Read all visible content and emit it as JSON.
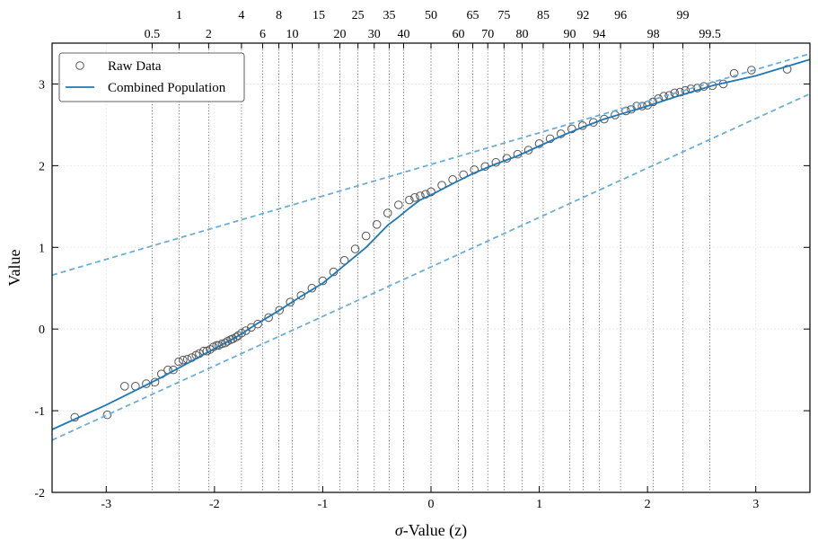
{
  "chart_data": {
    "type": "scatter",
    "title": "",
    "xlabel": {
      "symbol": "σ",
      "text": "-Value (z)"
    },
    "ylabel": "Value",
    "xlim": [
      -3.5,
      3.5
    ],
    "ylim": [
      -2,
      3.5
    ],
    "x_ticks": [
      -3,
      -2,
      -1,
      0,
      1,
      2,
      3
    ],
    "x_tick_labels": [
      "-3",
      "-2",
      "-1",
      "0",
      "1",
      "2",
      "3"
    ],
    "y_ticks": [
      -2,
      -1,
      0,
      1,
      2,
      3
    ],
    "y_tick_labels": [
      "-2",
      "-1",
      "0",
      "1",
      "2",
      "3"
    ],
    "grid": true,
    "legend_position": "top-left",
    "top_axis": {
      "label": "",
      "percentile_ticks_upper": [
        1,
        4,
        8,
        15,
        25,
        35,
        50,
        65,
        75,
        85,
        92,
        96,
        99
      ],
      "percentile_ticks_lower": [
        0.5,
        2,
        6,
        10,
        20,
        30,
        40,
        60,
        70,
        80,
        90,
        94,
        98,
        99.5
      ]
    },
    "series": [
      {
        "name": "Raw Data",
        "kind": "scatter",
        "marker": "open-circle",
        "color": "#555555",
        "x": [
          -3.29,
          -2.99,
          -2.83,
          -2.73,
          -2.63,
          -2.55,
          -2.49,
          -2.43,
          -2.38,
          -2.33,
          -2.29,
          -2.25,
          -2.21,
          -2.17,
          -2.14,
          -2.1,
          -2.07,
          -2.04,
          -2.01,
          -1.98,
          -1.96,
          -1.93,
          -1.9,
          -1.88,
          -1.85,
          -1.83,
          -1.8,
          -1.78,
          -1.75,
          -1.71,
          -1.66,
          -1.6,
          -1.5,
          -1.4,
          -1.3,
          -1.2,
          -1.1,
          -1.0,
          -0.9,
          -0.8,
          -0.7,
          -0.6,
          -0.5,
          -0.4,
          -0.3,
          -0.2,
          -0.15,
          -0.1,
          -0.05,
          0.0,
          0.1,
          0.2,
          0.3,
          0.4,
          0.5,
          0.6,
          0.7,
          0.8,
          0.9,
          1.0,
          1.1,
          1.2,
          1.3,
          1.4,
          1.5,
          1.6,
          1.7,
          1.8,
          1.85,
          1.9,
          1.95,
          2.0,
          2.05,
          2.1,
          2.15,
          2.2,
          2.25,
          2.3,
          2.35,
          2.4,
          2.46,
          2.52,
          2.6,
          2.7,
          2.8,
          2.96,
          3.29
        ],
        "y": [
          -1.08,
          -1.05,
          -0.7,
          -0.7,
          -0.67,
          -0.65,
          -0.55,
          -0.5,
          -0.5,
          -0.4,
          -0.38,
          -0.37,
          -0.35,
          -0.32,
          -0.3,
          -0.27,
          -0.27,
          -0.25,
          -0.22,
          -0.2,
          -0.2,
          -0.18,
          -0.17,
          -0.15,
          -0.13,
          -0.12,
          -0.1,
          -0.08,
          -0.05,
          -0.02,
          0.02,
          0.06,
          0.14,
          0.23,
          0.33,
          0.41,
          0.5,
          0.59,
          0.7,
          0.84,
          0.98,
          1.14,
          1.28,
          1.42,
          1.52,
          1.58,
          1.61,
          1.63,
          1.65,
          1.68,
          1.76,
          1.83,
          1.89,
          1.95,
          1.99,
          2.04,
          2.09,
          2.14,
          2.19,
          2.27,
          2.33,
          2.39,
          2.45,
          2.49,
          2.53,
          2.57,
          2.62,
          2.67,
          2.69,
          2.73,
          2.73,
          2.74,
          2.78,
          2.82,
          2.85,
          2.86,
          2.89,
          2.9,
          2.92,
          2.94,
          2.95,
          2.97,
          2.98,
          3.0,
          3.13,
          3.17,
          3.18
        ]
      },
      {
        "name": "Combined Population",
        "kind": "line",
        "color": "#1f77b4",
        "x": [
          -3.5,
          -3.0,
          -2.5,
          -2.0,
          -1.8,
          -1.6,
          -1.4,
          -1.2,
          -1.0,
          -0.8,
          -0.6,
          -0.4,
          -0.3,
          -0.2,
          -0.1,
          0.0,
          0.2,
          0.4,
          0.6,
          0.8,
          1.0,
          1.2,
          1.4,
          1.6,
          1.8,
          2.0,
          2.3,
          2.6,
          3.0,
          3.5
        ],
        "y": [
          -1.23,
          -0.93,
          -0.6,
          -0.24,
          -0.1,
          0.07,
          0.23,
          0.4,
          0.56,
          0.78,
          1.0,
          1.27,
          1.37,
          1.48,
          1.58,
          1.64,
          1.78,
          1.91,
          2.02,
          2.12,
          2.24,
          2.36,
          2.47,
          2.57,
          2.65,
          2.73,
          2.86,
          2.98,
          3.1,
          3.3
        ]
      },
      {
        "name": "",
        "kind": "dashed-line",
        "color": "#6baed6",
        "x": [
          -3.5,
          3.5
        ],
        "y": [
          0.66,
          3.37
        ]
      },
      {
        "name": "",
        "kind": "dashed-line",
        "color": "#6baed6",
        "x": [
          -3.5,
          3.5
        ],
        "y": [
          -1.36,
          2.88
        ]
      }
    ]
  }
}
